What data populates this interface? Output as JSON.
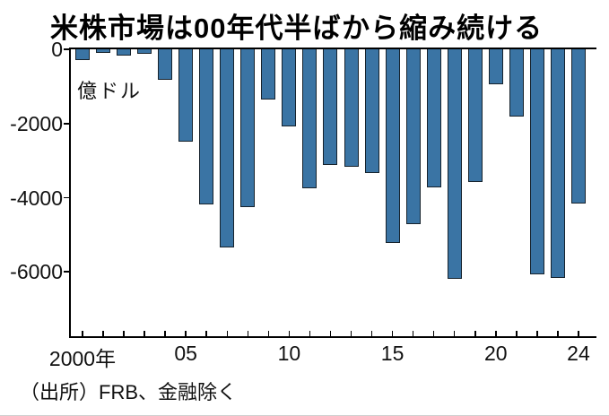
{
  "title": "米株市場は00年代半ばから縮み続ける",
  "unit_label": "億ドル",
  "source": "（出所）FRB、金融除く",
  "chart_data": {
    "type": "bar",
    "title": "米株市場は00年代半ばから縮み続ける",
    "ylabel": "億ドル",
    "xlabel": "年",
    "x": [
      2000,
      2001,
      2002,
      2003,
      2004,
      2005,
      2006,
      2007,
      2008,
      2009,
      2010,
      2011,
      2012,
      2013,
      2014,
      2015,
      2016,
      2017,
      2018,
      2019,
      2020,
      2021,
      2022,
      2023,
      2024
    ],
    "values": [
      -280,
      -100,
      -160,
      -120,
      -830,
      -2500,
      -4180,
      -5330,
      -4240,
      -1350,
      -2070,
      -3740,
      -3120,
      -3170,
      -3340,
      -5210,
      -4720,
      -3720,
      -6190,
      -3580,
      -950,
      -1810,
      -6070,
      -6170,
      -4150
    ],
    "y_ticks": [
      0,
      -2000,
      -4000,
      -6000
    ],
    "y_tick_labels": [
      "0",
      "-2000",
      "-4000",
      "-6000"
    ],
    "x_tick_label_map": {
      "0": "2000年",
      "5": "05",
      "10": "10",
      "15": "15",
      "20": "20",
      "24": "24"
    },
    "ylim": [
      -7730,
      0
    ],
    "grid": false,
    "legend": null,
    "bar_color": "#3a74a4",
    "bar_border_color": "#16222c",
    "source": "（出所）FRB、金融除く"
  }
}
